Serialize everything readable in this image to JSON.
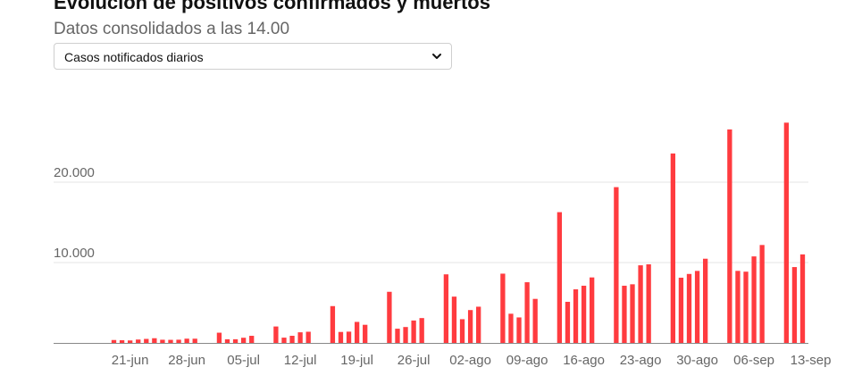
{
  "header": {
    "title": "Evolución de positivos confirmados y muertos",
    "subtitle": "Datos consolidados a las 14.00"
  },
  "selector": {
    "selected": "Casos notificados diarios",
    "icon": "chevron-down-icon"
  },
  "colors": {
    "bar": "#ff3b3f",
    "grid": "#e6e6e6",
    "axis": "#888888",
    "tick": "#666666"
  },
  "chart_data": {
    "type": "bar",
    "ylim": [
      0,
      30000
    ],
    "y_ticks": [
      {
        "value": 10000,
        "label": "10.000"
      },
      {
        "value": 20000,
        "label": "20.000"
      }
    ],
    "grid": "horizontal",
    "x_ticks": [
      "21-jun",
      "28-jun",
      "05-jul",
      "12-jul",
      "19-jul",
      "26-jul",
      "02-ago",
      "09-ago",
      "16-ago",
      "23-ago",
      "30-ago",
      "06-sep",
      "13-sep"
    ],
    "x_tick_start_index": 2,
    "values": [
      362,
      334,
      307,
      422,
      500,
      584,
      396,
      383,
      401,
      530,
      526,
      0,
      0,
      1272,
      456,
      458,
      643,
      885,
      0,
      0,
      2045,
      657,
      888,
      1321,
      1391,
      0,
      0,
      4581,
      1366,
      1403,
      2615,
      2255,
      0,
      0,
      6361,
      1769,
      1979,
      2789,
      3092,
      0,
      0,
      8532,
      5760,
      2953,
      4088,
      4507,
      0,
      0,
      8618,
      3632,
      3172,
      7550,
      5479,
      0,
      0,
      16269,
      5114,
      6671,
      7117,
      8148,
      0,
      0,
      19382,
      7117,
      7296,
      9658,
      9779,
      0,
      0,
      23572,
      8115,
      8581,
      8959,
      10476,
      0,
      0,
      26560,
      8964,
      8866,
      10764,
      12183,
      0,
      0,
      27404,
      9437,
      11016
    ]
  }
}
